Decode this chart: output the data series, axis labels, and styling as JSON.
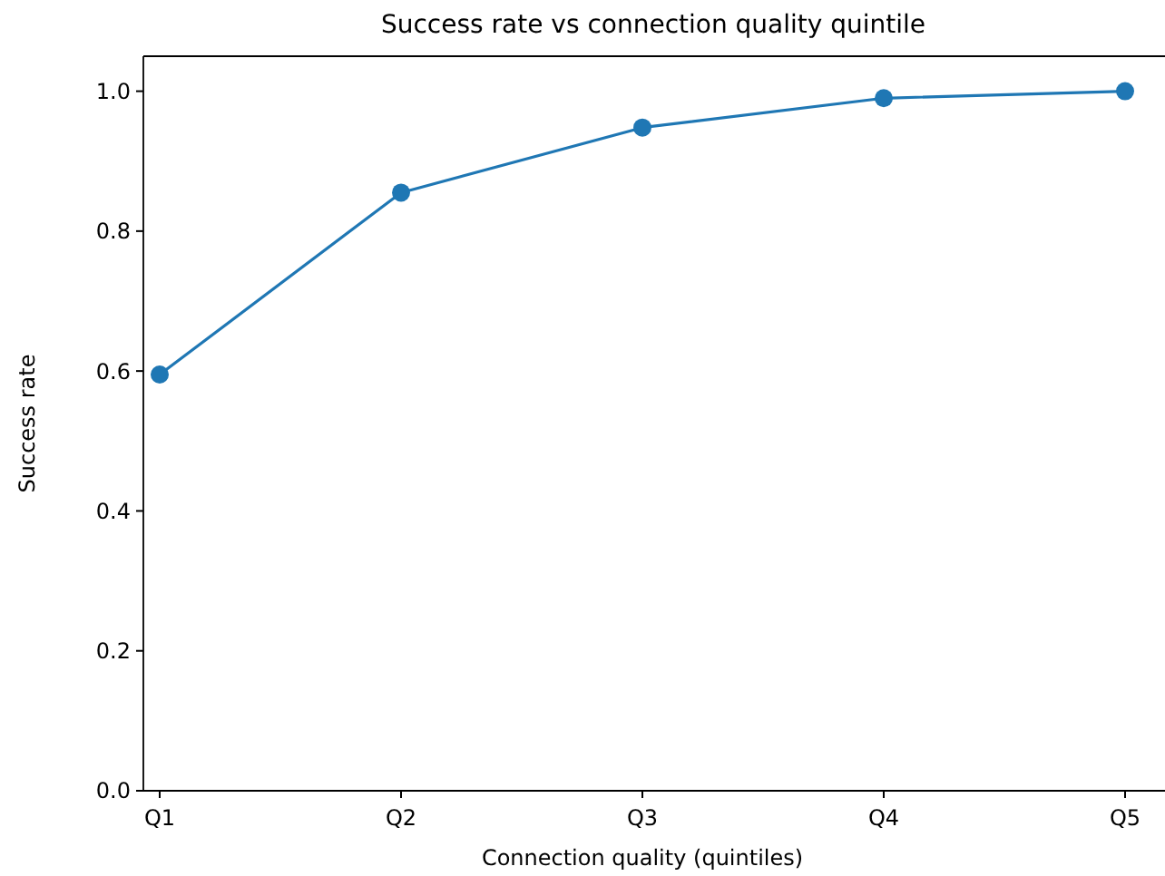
{
  "chart_data": {
    "type": "line",
    "title": "Success rate vs connection quality quintile",
    "xlabel": "Connection quality (quintiles)",
    "ylabel": "Success rate",
    "categories": [
      "Q1",
      "Q2",
      "Q3",
      "Q4",
      "Q5"
    ],
    "series": [
      {
        "color": "#1f77b4",
        "values": [
          0.595,
          0.855,
          0.948,
          0.99,
          1.0
        ]
      }
    ],
    "ylim": [
      0,
      1.05
    ],
    "yticks": [
      {
        "value": 0,
        "label": "0.0"
      },
      {
        "value": 0.2,
        "label": "0.2"
      },
      {
        "value": 0.4,
        "label": "0.4"
      },
      {
        "value": 0.6,
        "label": "0.6"
      },
      {
        "value": 0.8,
        "label": "0.8"
      },
      {
        "value": 1,
        "label": "1.0"
      }
    ],
    "marker": "circle",
    "grid": false
  }
}
